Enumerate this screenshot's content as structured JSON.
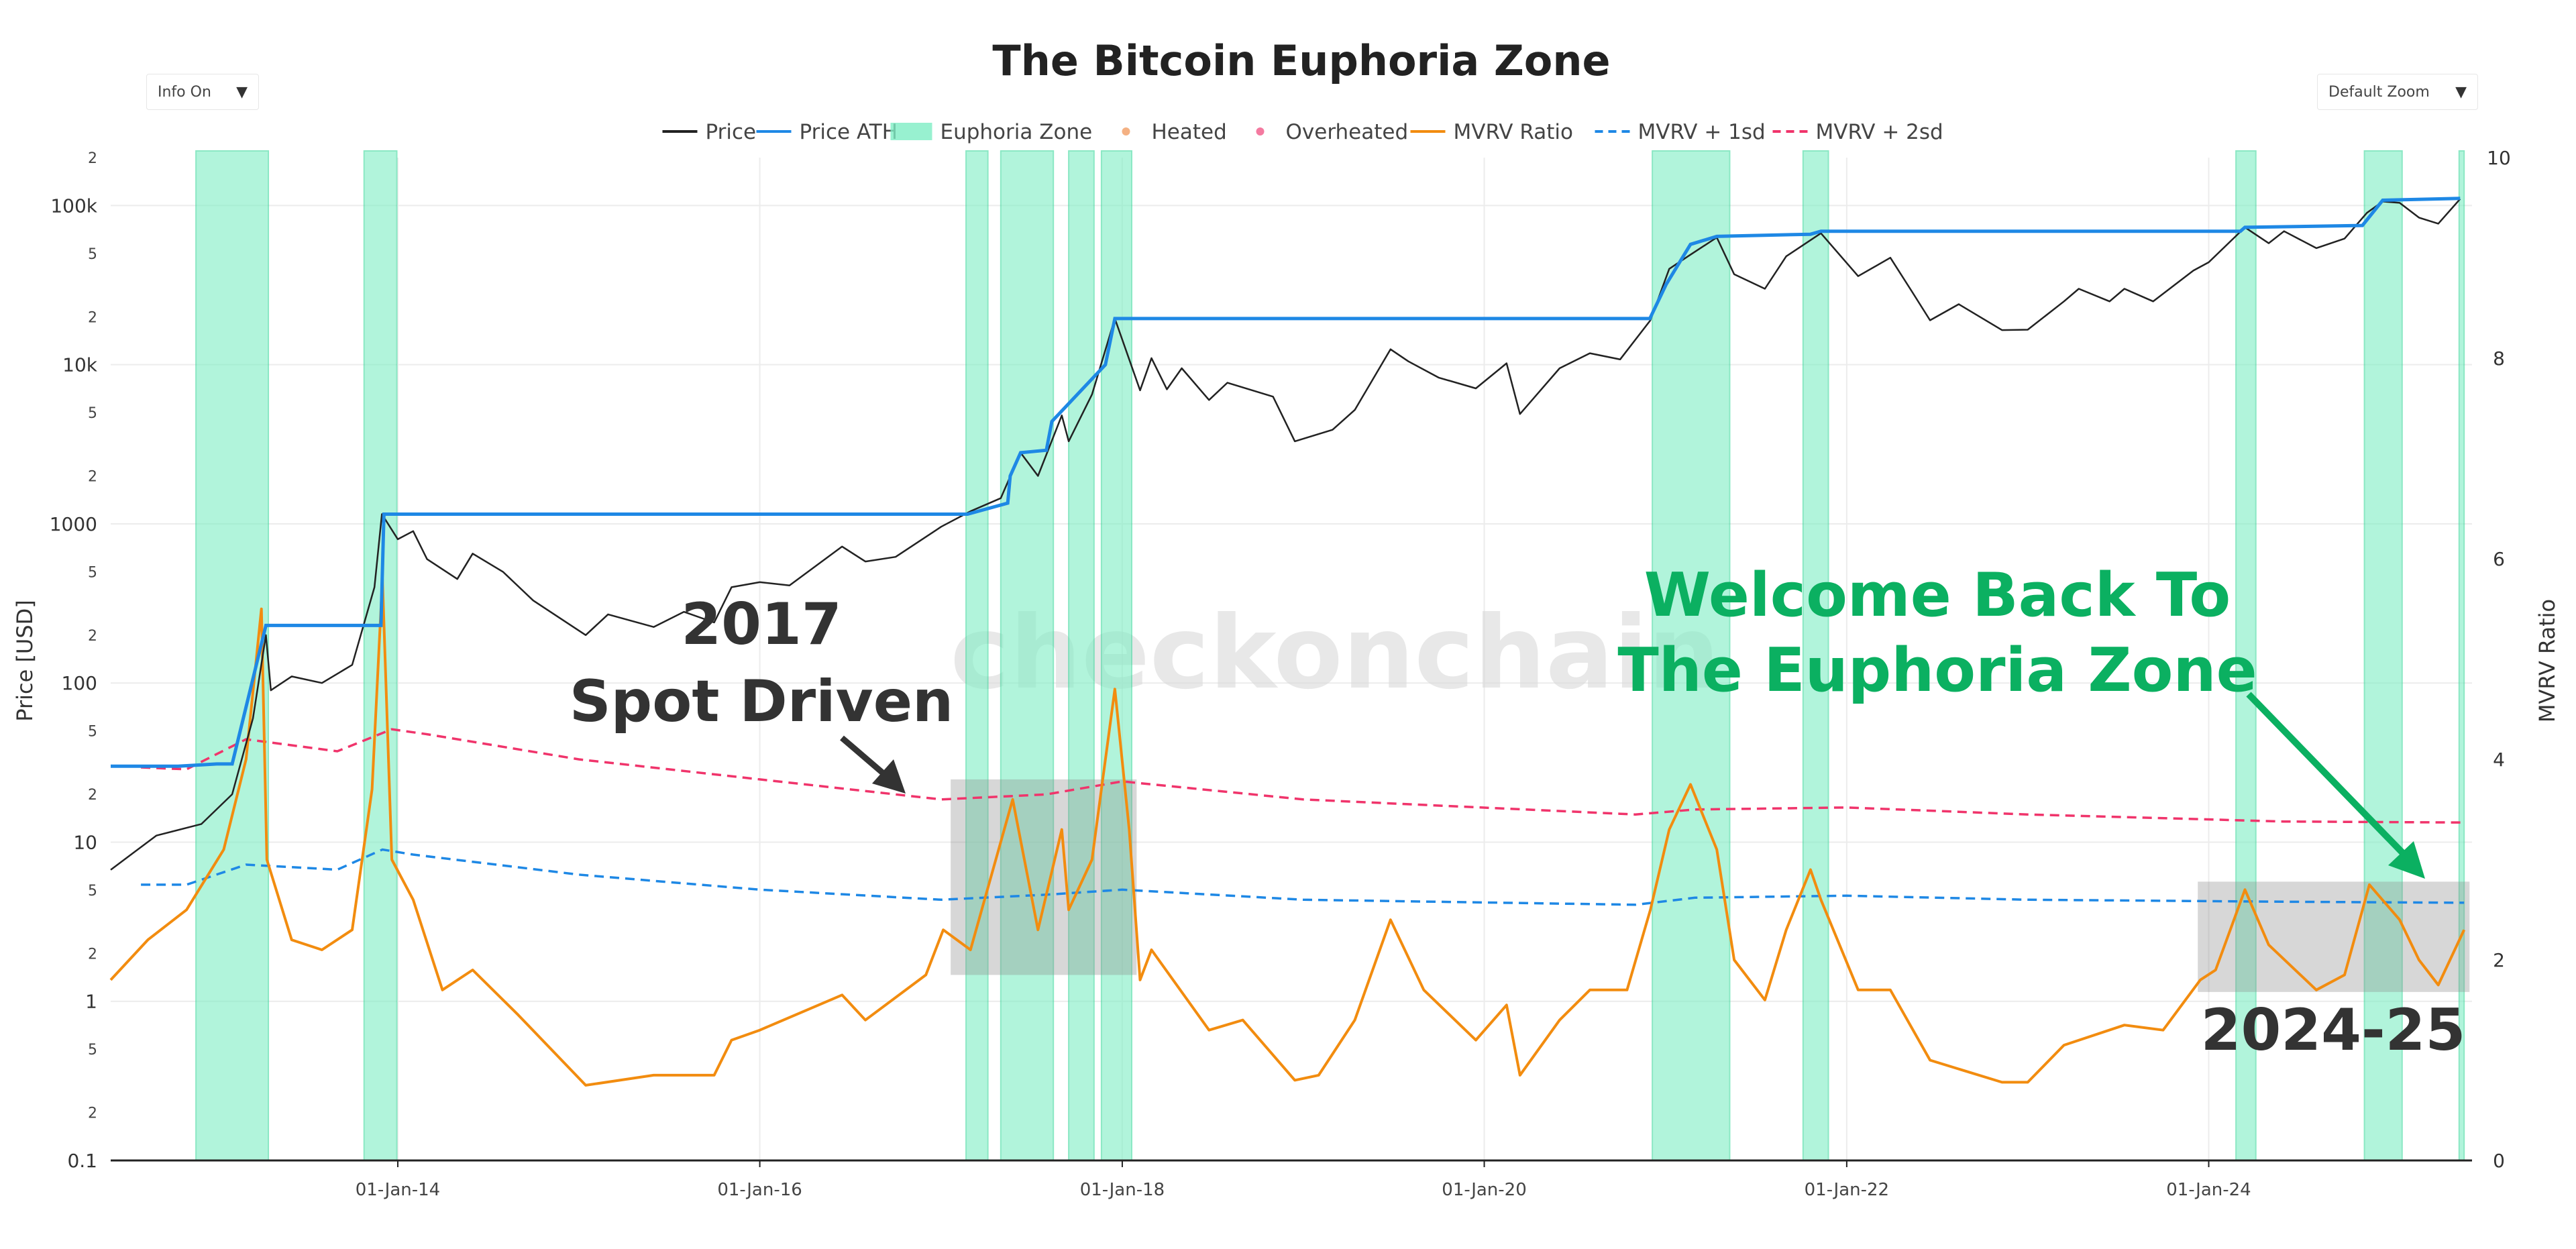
{
  "controls": {
    "info_label": "Info On",
    "zoom_label": "Default Zoom",
    "arrow_glyph": "▼"
  },
  "watermark": "checkonchain",
  "chart_data": {
    "type": "line",
    "title": "The Bitcoin Euphoria Zone",
    "ylabel": "Price [USD]",
    "y2label": "MVRV Ratio",
    "y_scale": "log",
    "ylim": [
      0.1,
      200000
    ],
    "y2lim": [
      0,
      10
    ],
    "xlim": [
      "2012-06-01",
      "2025-06-15"
    ],
    "x_ticks": [
      "01-Jan-14",
      "01-Jan-16",
      "01-Jan-18",
      "01-Jan-20",
      "01-Jan-22",
      "01-Jan-24"
    ],
    "x_tick_dates": [
      "2014-01-01",
      "2016-01-01",
      "2018-01-01",
      "2020-01-01",
      "2022-01-01",
      "2024-01-01"
    ],
    "y_major_ticks": [
      {
        "v": 0.1,
        "label": "0.1"
      },
      {
        "v": 1,
        "label": "1"
      },
      {
        "v": 10,
        "label": "10"
      },
      {
        "v": 100,
        "label": "100"
      },
      {
        "v": 1000,
        "label": "1000"
      },
      {
        "v": 10000,
        "label": "10k"
      },
      {
        "v": 100000,
        "label": "100k"
      }
    ],
    "y_minor_ticks": [
      {
        "v": 0.2,
        "label": "2"
      },
      {
        "v": 0.5,
        "label": "5"
      },
      {
        "v": 2,
        "label": "2"
      },
      {
        "v": 5,
        "label": "5"
      },
      {
        "v": 20,
        "label": "2"
      },
      {
        "v": 50,
        "label": "5"
      },
      {
        "v": 200,
        "label": "2"
      },
      {
        "v": 500,
        "label": "5"
      },
      {
        "v": 2000,
        "label": "2"
      },
      {
        "v": 5000,
        "label": "5"
      },
      {
        "v": 20000,
        "label": "2"
      },
      {
        "v": 50000,
        "label": "5"
      },
      {
        "v": 200000,
        "label": "2"
      }
    ],
    "y2_ticks": [
      {
        "v": 0,
        "label": "0"
      },
      {
        "v": 2,
        "label": "2"
      },
      {
        "v": 4,
        "label": "4"
      },
      {
        "v": 6,
        "label": "6"
      },
      {
        "v": 8,
        "label": "8"
      },
      {
        "v": 10,
        "label": "10"
      }
    ],
    "grid": true,
    "legend_position": "top-center",
    "legend": [
      {
        "name": "Price",
        "kind": "line",
        "color": "#222222"
      },
      {
        "name": "Price ATH",
        "kind": "line",
        "color": "#1e88e5"
      },
      {
        "name": "Euphoria Zone",
        "kind": "box",
        "color": "#7eeec4"
      },
      {
        "name": "Heated",
        "kind": "dot",
        "color": "#f4b183"
      },
      {
        "name": "Overheated",
        "kind": "dot",
        "color": "#f47aa0"
      },
      {
        "name": "MVRV Ratio",
        "kind": "line",
        "color": "#f28c0f"
      },
      {
        "name": "MVRV + 1sd",
        "kind": "dash",
        "color": "#1e88e5"
      },
      {
        "name": "MVRV + 2sd",
        "kind": "dash",
        "color": "#f0346b"
      }
    ],
    "colors": {
      "price": "#222222",
      "ath": "#1e88e5",
      "zone": "#7eeec4",
      "zone_edge": "#3fd99e",
      "heated": "#f4b183",
      "overheated": "#f0346b",
      "mvrv": "#f28c0f",
      "sd1": "#1e88e5",
      "sd2": "#f0346b",
      "highlight": "#8c8c8c",
      "green_text": "#0bb061"
    },
    "euphoria_zones": [
      [
        "2012-11-20",
        "2013-04-15"
      ],
      [
        "2013-10-25",
        "2013-12-30"
      ],
      [
        "2017-02-20",
        "2017-04-05"
      ],
      [
        "2017-05-01",
        "2017-08-15"
      ],
      [
        "2017-09-15",
        "2017-11-05"
      ],
      [
        "2017-11-20",
        "2018-01-20"
      ],
      [
        "2020-12-05",
        "2021-05-10"
      ],
      [
        "2021-10-05",
        "2021-11-25"
      ],
      [
        "2024-02-25",
        "2024-04-05"
      ],
      [
        "2024-11-10",
        "2025-01-25"
      ],
      [
        "2025-05-20",
        "2025-05-30"
      ]
    ],
    "price": [
      [
        "2012-06-01",
        6.7
      ],
      [
        "2012-09-01",
        11
      ],
      [
        "2012-12-01",
        13
      ],
      [
        "2013-02-01",
        20
      ],
      [
        "2013-03-15",
        60
      ],
      [
        "2013-04-10",
        200
      ],
      [
        "2013-04-20",
        90
      ],
      [
        "2013-06-01",
        110
      ],
      [
        "2013-08-01",
        100
      ],
      [
        "2013-10-01",
        130
      ],
      [
        "2013-11-15",
        400
      ],
      [
        "2013-11-30",
        1150
      ],
      [
        "2014-01-01",
        800
      ],
      [
        "2014-02-01",
        900
      ],
      [
        "2014-03-01",
        600
      ],
      [
        "2014-05-01",
        450
      ],
      [
        "2014-06-01",
        650
      ],
      [
        "2014-08-01",
        500
      ],
      [
        "2014-10-01",
        330
      ],
      [
        "2015-01-15",
        200
      ],
      [
        "2015-03-01",
        270
      ],
      [
        "2015-06-01",
        225
      ],
      [
        "2015-08-01",
        280
      ],
      [
        "2015-10-01",
        240
      ],
      [
        "2015-11-05",
        400
      ],
      [
        "2016-01-01",
        430
      ],
      [
        "2016-03-01",
        410
      ],
      [
        "2016-06-15",
        720
      ],
      [
        "2016-08-01",
        580
      ],
      [
        "2016-10-01",
        620
      ],
      [
        "2017-01-01",
        960
      ],
      [
        "2017-03-01",
        1200
      ],
      [
        "2017-05-01",
        1450
      ],
      [
        "2017-06-10",
        2800
      ],
      [
        "2017-07-15",
        2000
      ],
      [
        "2017-09-01",
        4800
      ],
      [
        "2017-09-15",
        3300
      ],
      [
        "2017-11-01",
        6500
      ],
      [
        "2017-12-17",
        19500
      ],
      [
        "2018-02-06",
        6900
      ],
      [
        "2018-03-01",
        11000
      ],
      [
        "2018-04-01",
        7000
      ],
      [
        "2018-05-01",
        9500
      ],
      [
        "2018-06-25",
        6000
      ],
      [
        "2018-08-01",
        7700
      ],
      [
        "2018-11-01",
        6300
      ],
      [
        "2018-12-15",
        3300
      ],
      [
        "2019-03-01",
        3900
      ],
      [
        "2019-04-15",
        5200
      ],
      [
        "2019-06-26",
        12500
      ],
      [
        "2019-08-01",
        10500
      ],
      [
        "2019-10-01",
        8300
      ],
      [
        "2019-12-15",
        7100
      ],
      [
        "2020-02-15",
        10200
      ],
      [
        "2020-03-13",
        4900
      ],
      [
        "2020-06-01",
        9500
      ],
      [
        "2020-08-01",
        11800
      ],
      [
        "2020-10-01",
        10800
      ],
      [
        "2020-12-01",
        19000
      ],
      [
        "2021-01-08",
        40000
      ],
      [
        "2021-02-15",
        48000
      ],
      [
        "2021-04-14",
        63000
      ],
      [
        "2021-05-19",
        37000
      ],
      [
        "2021-07-20",
        30000
      ],
      [
        "2021-09-01",
        48000
      ],
      [
        "2021-11-10",
        67000
      ],
      [
        "2022-01-24",
        36000
      ],
      [
        "2022-03-30",
        47000
      ],
      [
        "2022-05-12",
        29000
      ],
      [
        "2022-06-18",
        19000
      ],
      [
        "2022-08-15",
        24000
      ],
      [
        "2022-11-10",
        16500
      ],
      [
        "2023-01-01",
        16600
      ],
      [
        "2023-03-15",
        25000
      ],
      [
        "2023-04-14",
        30000
      ],
      [
        "2023-06-15",
        25000
      ],
      [
        "2023-07-15",
        30000
      ],
      [
        "2023-09-11",
        25000
      ],
      [
        "2023-12-01",
        39000
      ],
      [
        "2024-01-01",
        44000
      ],
      [
        "2024-03-14",
        73000
      ],
      [
        "2024-05-01",
        58000
      ],
      [
        "2024-06-01",
        69000
      ],
      [
        "2024-08-05",
        54000
      ],
      [
        "2024-10-01",
        62000
      ],
      [
        "2024-11-15",
        90000
      ],
      [
        "2024-12-17",
        106000
      ],
      [
        "2025-01-20",
        104000
      ],
      [
        "2025-02-28",
        84000
      ],
      [
        "2025-04-08",
        77000
      ],
      [
        "2025-05-22",
        110000
      ]
    ],
    "price_ath": [
      [
        "2012-06-01",
        30
      ],
      [
        "2012-10-15",
        30
      ],
      [
        "2013-01-01",
        31
      ],
      [
        "2013-02-01",
        31
      ],
      [
        "2013-04-10",
        230
      ],
      [
        "2013-11-28",
        230
      ],
      [
        "2013-12-04",
        1150
      ],
      [
        "2017-02-23",
        1150
      ],
      [
        "2017-05-15",
        1350
      ],
      [
        "2017-05-20",
        2000
      ],
      [
        "2017-06-10",
        2800
      ],
      [
        "2017-08-01",
        2900
      ],
      [
        "2017-08-12",
        4400
      ],
      [
        "2017-11-28",
        10000
      ],
      [
        "2017-12-17",
        19500
      ],
      [
        "2020-11-30",
        19500
      ],
      [
        "2021-01-02",
        32000
      ],
      [
        "2021-02-20",
        57000
      ],
      [
        "2021-04-14",
        64000
      ],
      [
        "2021-10-20",
        66000
      ],
      [
        "2021-11-10",
        69000
      ],
      [
        "2024-03-05",
        69000
      ],
      [
        "2024-03-14",
        73000
      ],
      [
        "2024-11-06",
        75000
      ],
      [
        "2024-12-17",
        108000
      ],
      [
        "2025-05-22",
        111000
      ]
    ],
    "mvrv": [
      [
        "2012-06-01",
        1.8
      ],
      [
        "2012-08-15",
        2.2
      ],
      [
        "2012-11-01",
        2.5
      ],
      [
        "2013-01-15",
        3.1
      ],
      [
        "2013-03-01",
        4.0
      ],
      [
        "2013-04-01",
        5.5
      ],
      [
        "2013-04-12",
        3.0
      ],
      [
        "2013-06-01",
        2.2
      ],
      [
        "2013-08-01",
        2.1
      ],
      [
        "2013-10-01",
        2.3
      ],
      [
        "2013-11-10",
        3.7
      ],
      [
        "2013-12-01",
        5.8
      ],
      [
        "2013-12-20",
        3.0
      ],
      [
        "2014-02-01",
        2.6
      ],
      [
        "2014-04-01",
        1.7
      ],
      [
        "2014-06-01",
        1.9
      ],
      [
        "2014-09-01",
        1.45
      ],
      [
        "2015-01-15",
        0.75
      ],
      [
        "2015-06-01",
        0.85
      ],
      [
        "2015-10-01",
        0.85
      ],
      [
        "2015-11-05",
        1.2
      ],
      [
        "2016-01-01",
        1.3
      ],
      [
        "2016-06-15",
        1.65
      ],
      [
        "2016-08-01",
        1.4
      ],
      [
        "2016-12-01",
        1.85
      ],
      [
        "2017-01-05",
        2.3
      ],
      [
        "2017-03-01",
        2.1
      ],
      [
        "2017-05-25",
        3.6
      ],
      [
        "2017-07-15",
        2.3
      ],
      [
        "2017-09-01",
        3.3
      ],
      [
        "2017-09-15",
        2.5
      ],
      [
        "2017-11-01",
        3.0
      ],
      [
        "2017-12-17",
        4.7
      ],
      [
        "2018-01-15",
        3.3
      ],
      [
        "2018-02-06",
        1.8
      ],
      [
        "2018-03-01",
        2.1
      ],
      [
        "2018-06-25",
        1.3
      ],
      [
        "2018-09-01",
        1.4
      ],
      [
        "2018-12-15",
        0.8
      ],
      [
        "2019-02-01",
        0.85
      ],
      [
        "2019-04-15",
        1.4
      ],
      [
        "2019-06-26",
        2.4
      ],
      [
        "2019-09-01",
        1.7
      ],
      [
        "2019-12-15",
        1.2
      ],
      [
        "2020-02-15",
        1.55
      ],
      [
        "2020-03-13",
        0.85
      ],
      [
        "2020-06-01",
        1.4
      ],
      [
        "2020-08-01",
        1.7
      ],
      [
        "2020-10-15",
        1.7
      ],
      [
        "2020-12-01",
        2.5
      ],
      [
        "2021-01-08",
        3.3
      ],
      [
        "2021-02-20",
        3.75
      ],
      [
        "2021-04-14",
        3.1
      ],
      [
        "2021-05-19",
        2.0
      ],
      [
        "2021-07-20",
        1.6
      ],
      [
        "2021-09-01",
        2.3
      ],
      [
        "2021-10-20",
        2.9
      ],
      [
        "2021-11-10",
        2.6
      ],
      [
        "2022-01-24",
        1.7
      ],
      [
        "2022-03-30",
        1.7
      ],
      [
        "2022-06-18",
        1.0
      ],
      [
        "2022-11-10",
        0.78
      ],
      [
        "2023-01-01",
        0.78
      ],
      [
        "2023-03-15",
        1.15
      ],
      [
        "2023-07-15",
        1.35
      ],
      [
        "2023-10-01",
        1.3
      ],
      [
        "2023-12-15",
        1.8
      ],
      [
        "2024-01-15",
        1.9
      ],
      [
        "2024-03-14",
        2.7
      ],
      [
        "2024-05-01",
        2.15
      ],
      [
        "2024-08-05",
        1.7
      ],
      [
        "2024-10-01",
        1.85
      ],
      [
        "2024-11-20",
        2.75
      ],
      [
        "2025-01-20",
        2.4
      ],
      [
        "2025-02-28",
        2.0
      ],
      [
        "2025-04-08",
        1.75
      ],
      [
        "2025-05-30",
        2.3
      ]
    ],
    "mvrv_1sd": [
      [
        "2012-08-01",
        2.75
      ],
      [
        "2012-11-01",
        2.75
      ],
      [
        "2013-03-01",
        2.95
      ],
      [
        "2013-09-01",
        2.9
      ],
      [
        "2013-12-01",
        3.1
      ],
      [
        "2014-02-01",
        3.05
      ],
      [
        "2015-01-01",
        2.85
      ],
      [
        "2016-01-01",
        2.7
      ],
      [
        "2017-01-01",
        2.6
      ],
      [
        "2017-08-01",
        2.65
      ],
      [
        "2018-01-01",
        2.7
      ],
      [
        "2019-01-01",
        2.6
      ],
      [
        "2020-11-01",
        2.55
      ],
      [
        "2021-03-01",
        2.62
      ],
      [
        "2022-01-01",
        2.64
      ],
      [
        "2023-01-01",
        2.6
      ],
      [
        "2024-06-01",
        2.58
      ],
      [
        "2025-05-30",
        2.57
      ]
    ],
    "mvrv_2sd": [
      [
        "2012-08-01",
        3.92
      ],
      [
        "2012-11-01",
        3.9
      ],
      [
        "2013-03-01",
        4.2
      ],
      [
        "2013-09-01",
        4.08
      ],
      [
        "2013-12-20",
        4.3
      ],
      [
        "2014-03-01",
        4.25
      ],
      [
        "2015-01-01",
        4.0
      ],
      [
        "2016-01-01",
        3.8
      ],
      [
        "2017-01-01",
        3.6
      ],
      [
        "2017-08-01",
        3.65
      ],
      [
        "2018-01-01",
        3.78
      ],
      [
        "2019-01-01",
        3.6
      ],
      [
        "2020-11-01",
        3.45
      ],
      [
        "2021-03-01",
        3.5
      ],
      [
        "2022-01-01",
        3.52
      ],
      [
        "2023-01-01",
        3.45
      ],
      [
        "2024-06-01",
        3.38
      ],
      [
        "2025-05-30",
        3.37
      ]
    ],
    "highlight_boxes": [
      {
        "from": "2017-01-20",
        "to": "2018-01-30",
        "y2_top": 3.8,
        "y2_bottom": 1.85
      },
      {
        "from": "2023-12-10",
        "to": "2025-06-10",
        "y2_top": 2.78,
        "y2_bottom": 1.68
      }
    ],
    "annotations": [
      {
        "lines": [
          "2017",
          "Spot Driven"
        ],
        "color": "#333333"
      },
      {
        "lines": [
          "Welcome Back To",
          "The Euphoria Zone"
        ],
        "color": "#0bb061"
      },
      {
        "lines": [
          "2024-25"
        ],
        "color": "#333333"
      }
    ]
  }
}
